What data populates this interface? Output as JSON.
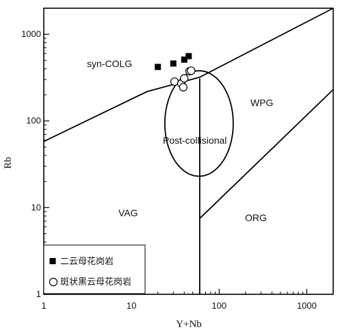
{
  "chart_data": {
    "type": "scatter",
    "title": "",
    "xlabel": "Y+Nb",
    "ylabel": "Rb",
    "x_scale": "log",
    "y_scale": "log",
    "xlim": [
      1,
      2000
    ],
    "ylim": [
      1,
      2000
    ],
    "x_ticks": [
      1,
      10,
      100,
      1000
    ],
    "y_ticks": [
      1,
      10,
      100,
      1000
    ],
    "x_tick_labels": [
      "1",
      "10",
      "100",
      "1000"
    ],
    "y_tick_labels": [
      "1",
      "10",
      "100",
      "1000"
    ],
    "grid": false,
    "legend_position": "bottom-left",
    "fields": {
      "syn_colg": "syn-COLG",
      "wpg": "WPG",
      "vag": "VAG",
      "org": "ORG",
      "post_collisional": "Post-collisional"
    },
    "boundaries": [
      {
        "points": [
          [
            1,
            58
          ],
          [
            15,
            218
          ],
          [
            60,
            320
          ],
          [
            2000,
            2000
          ]
        ]
      },
      {
        "points": [
          [
            60,
            1
          ],
          [
            60,
            310
          ]
        ]
      },
      {
        "points": [
          [
            60,
            7.5
          ],
          [
            2000,
            230
          ]
        ]
      }
    ],
    "post_collisional_ellipse": {
      "center": [
        60,
        95
      ],
      "x_range": [
        24,
        145
      ],
      "y_range": [
        23,
        380
      ]
    },
    "series": [
      {
        "name": "二云母花岗岩",
        "marker": "filled-square",
        "x": [
          20,
          30,
          40,
          45
        ],
        "y": [
          420,
          460,
          510,
          560
        ]
      },
      {
        "name": "斑状黑云母花岗岩",
        "marker": "open-circle",
        "x": [
          31,
          37,
          39,
          40,
          46,
          48
        ],
        "y": [
          285,
          270,
          245,
          310,
          375,
          380
        ]
      }
    ]
  }
}
